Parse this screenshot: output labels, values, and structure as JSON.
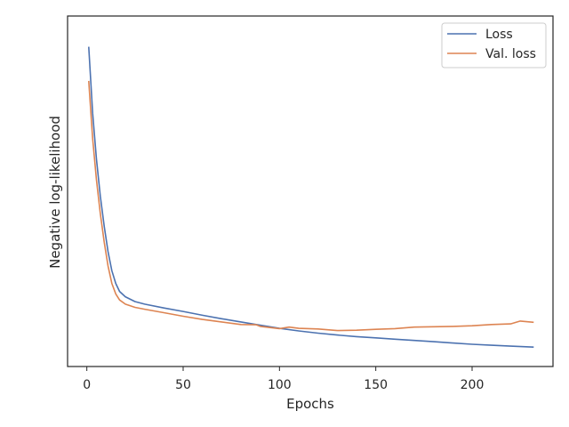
{
  "chart_data": {
    "type": "line",
    "title": "",
    "xlabel": "Epochs",
    "ylabel": "Negative log-likelihood",
    "xlim": [
      -10,
      242
    ],
    "ylim": [
      0,
      1
    ],
    "x_ticks": [
      0,
      50,
      100,
      150,
      200
    ],
    "y_ticks_shown": false,
    "grid": false,
    "legend_position": "top-right",
    "series": [
      {
        "name": "Loss",
        "color": "#4C72B0",
        "points": [
          [
            1,
            0.948
          ],
          [
            3,
            0.74
          ],
          [
            5,
            0.595
          ],
          [
            7,
            0.48
          ],
          [
            9,
            0.385
          ],
          [
            11,
            0.305
          ],
          [
            13,
            0.245
          ],
          [
            15,
            0.205
          ],
          [
            17,
            0.18
          ],
          [
            20,
            0.163
          ],
          [
            25,
            0.148
          ],
          [
            30,
            0.14
          ],
          [
            40,
            0.128
          ],
          [
            50,
            0.117
          ],
          [
            60,
            0.105
          ],
          [
            70,
            0.094
          ],
          [
            80,
            0.084
          ],
          [
            90,
            0.074
          ],
          [
            100,
            0.064
          ],
          [
            110,
            0.056
          ],
          [
            120,
            0.049
          ],
          [
            130,
            0.043
          ],
          [
            140,
            0.038
          ],
          [
            150,
            0.034
          ],
          [
            160,
            0.03
          ],
          [
            170,
            0.026
          ],
          [
            180,
            0.022
          ],
          [
            190,
            0.018
          ],
          [
            200,
            0.014
          ],
          [
            210,
            0.011
          ],
          [
            220,
            0.008
          ],
          [
            232,
            0.005
          ]
        ]
      },
      {
        "name": "Val. loss",
        "color": "#DD8452",
        "points": [
          [
            1,
            0.841
          ],
          [
            3,
            0.66
          ],
          [
            5,
            0.53
          ],
          [
            7,
            0.425
          ],
          [
            9,
            0.335
          ],
          [
            11,
            0.26
          ],
          [
            13,
            0.205
          ],
          [
            15,
            0.172
          ],
          [
            17,
            0.153
          ],
          [
            20,
            0.14
          ],
          [
            25,
            0.13
          ],
          [
            30,
            0.124
          ],
          [
            40,
            0.113
          ],
          [
            50,
            0.102
          ],
          [
            60,
            0.092
          ],
          [
            70,
            0.084
          ],
          [
            80,
            0.076
          ],
          [
            88,
            0.075
          ],
          [
            90,
            0.07
          ],
          [
            100,
            0.063
          ],
          [
            105,
            0.068
          ],
          [
            110,
            0.064
          ],
          [
            120,
            0.062
          ],
          [
            130,
            0.057
          ],
          [
            140,
            0.058
          ],
          [
            150,
            0.061
          ],
          [
            160,
            0.063
          ],
          [
            170,
            0.068
          ],
          [
            180,
            0.069
          ],
          [
            190,
            0.07
          ],
          [
            200,
            0.072
          ],
          [
            210,
            0.076
          ],
          [
            220,
            0.078
          ],
          [
            225,
            0.087
          ],
          [
            232,
            0.083
          ]
        ]
      }
    ]
  }
}
